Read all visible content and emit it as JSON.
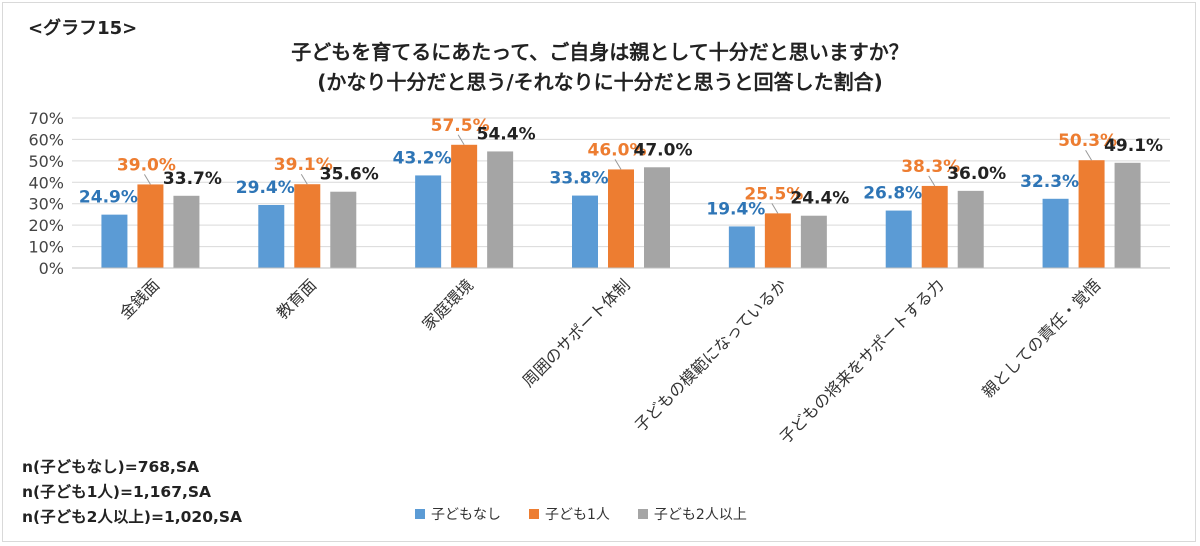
{
  "graph_tag": "<グラフ15>",
  "chart_data": {
    "type": "bar",
    "title": "子どもを育てるにあたって、ご自身は親として十分だと思いますか？",
    "subtitle": "(かなり十分だと思う/それなりに十分だと思うと回答した割合)",
    "categories": [
      "金銭面",
      "教育面",
      "家庭環境",
      "周囲のサポート体制",
      "子どもの模範になっているか",
      "子どもの将来をサポートする力",
      "親としての責任・覚悟"
    ],
    "series": [
      {
        "name": "子どもなし",
        "color": "#5b9bd5",
        "label_color": "#2e75b6",
        "values": [
          24.9,
          29.4,
          43.2,
          33.8,
          19.4,
          26.8,
          32.3
        ]
      },
      {
        "name": "子ども1人",
        "color": "#ed7d31",
        "label_color": "#ed7d31",
        "values": [
          39.0,
          39.1,
          57.5,
          46.0,
          25.5,
          38.3,
          50.3
        ]
      },
      {
        "name": "子ども2人以上",
        "color": "#a5a5a5",
        "label_color": "#222222",
        "values": [
          33.7,
          35.6,
          54.4,
          47.0,
          24.4,
          36.0,
          49.1
        ]
      }
    ],
    "value_labels": [
      [
        "24.9%",
        "29.4%",
        "43.2%",
        "33.8%",
        "19.4%",
        "26.8%",
        "32.3%"
      ],
      [
        "39.0%",
        "39.1%",
        "57.5%",
        "46.0%",
        "25.5%",
        "38.3%",
        "50.3%"
      ],
      [
        "33.7%",
        "35.6%",
        "54.4%",
        "47.0%",
        "24.4%",
        "36.0%",
        "49.1%"
      ]
    ],
    "yticks": [
      "0%",
      "10%",
      "20%",
      "30%",
      "40%",
      "50%",
      "60%",
      "70%"
    ],
    "ylim": [
      0,
      70
    ],
    "grid": true,
    "legend_position": "bottom"
  },
  "notes": [
    "n(子どもなし)=768,SA",
    "n(子ども1人)=1,167,SA",
    "n(子ども2人以上)=1,020,SA"
  ]
}
